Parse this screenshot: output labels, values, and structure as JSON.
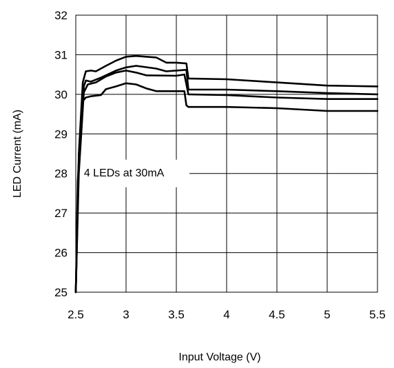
{
  "chart_data": {
    "type": "line",
    "title": "",
    "xlabel": "Input Voltage (V)",
    "ylabel": "LED Current (mA)",
    "xlim": [
      2.5,
      5.5
    ],
    "ylim": [
      25,
      32
    ],
    "x_ticks": [
      2.5,
      3,
      3.5,
      4,
      4.5,
      5,
      5.5
    ],
    "x_tick_labels": [
      "2.5",
      "3",
      "3.5",
      "4",
      "4.5",
      "5",
      "5.5"
    ],
    "y_ticks": [
      25,
      26,
      27,
      28,
      29,
      30,
      31,
      32
    ],
    "y_tick_labels": [
      "25",
      "26",
      "27",
      "28",
      "29",
      "30",
      "31",
      "32"
    ],
    "grid": true,
    "line_color": "#000000",
    "annotation": "4 LEDs at 30mA",
    "series": [
      {
        "values": [
          [
            2.5,
            25.0
          ],
          [
            2.53,
            28.5
          ],
          [
            2.57,
            30.3
          ],
          [
            2.6,
            30.58
          ],
          [
            2.65,
            30.6
          ],
          [
            2.7,
            30.58
          ],
          [
            2.8,
            30.72
          ],
          [
            2.9,
            30.85
          ],
          [
            3.0,
            30.95
          ],
          [
            3.1,
            30.97
          ],
          [
            3.3,
            30.93
          ],
          [
            3.4,
            30.8
          ],
          [
            3.5,
            30.8
          ],
          [
            3.6,
            30.78
          ],
          [
            3.62,
            30.4
          ],
          [
            4.0,
            30.38
          ],
          [
            4.5,
            30.3
          ],
          [
            5.0,
            30.22
          ],
          [
            5.5,
            30.2
          ]
        ]
      },
      {
        "values": [
          [
            2.5,
            25.0
          ],
          [
            2.53,
            28.3
          ],
          [
            2.58,
            30.2
          ],
          [
            2.6,
            30.35
          ],
          [
            2.65,
            30.32
          ],
          [
            2.75,
            30.42
          ],
          [
            2.9,
            30.6
          ],
          [
            3.0,
            30.68
          ],
          [
            3.1,
            30.72
          ],
          [
            3.3,
            30.65
          ],
          [
            3.4,
            30.58
          ],
          [
            3.6,
            30.62
          ],
          [
            3.62,
            30.12
          ],
          [
            4.0,
            30.12
          ],
          [
            4.5,
            30.08
          ],
          [
            5.0,
            30.03
          ],
          [
            5.5,
            30.0
          ]
        ]
      },
      {
        "values": [
          [
            2.5,
            25.0
          ],
          [
            2.53,
            28.0
          ],
          [
            2.58,
            30.05
          ],
          [
            2.62,
            30.25
          ],
          [
            2.7,
            30.3
          ],
          [
            2.8,
            30.45
          ],
          [
            2.9,
            30.55
          ],
          [
            3.0,
            30.6
          ],
          [
            3.1,
            30.55
          ],
          [
            3.2,
            30.48
          ],
          [
            3.5,
            30.47
          ],
          [
            3.58,
            30.5
          ],
          [
            3.62,
            30.0
          ],
          [
            4.0,
            29.98
          ],
          [
            4.5,
            29.92
          ],
          [
            5.0,
            29.88
          ],
          [
            5.5,
            29.88
          ]
        ]
      },
      {
        "values": [
          [
            2.5,
            25.0
          ],
          [
            2.52,
            27.8
          ],
          [
            2.56,
            29.8
          ],
          [
            2.6,
            29.92
          ],
          [
            2.65,
            29.95
          ],
          [
            2.75,
            29.98
          ],
          [
            2.8,
            30.13
          ],
          [
            2.9,
            30.2
          ],
          [
            3.0,
            30.28
          ],
          [
            3.1,
            30.25
          ],
          [
            3.2,
            30.15
          ],
          [
            3.3,
            30.08
          ],
          [
            3.58,
            30.08
          ],
          [
            3.6,
            29.72
          ],
          [
            3.62,
            29.68
          ],
          [
            4.0,
            29.68
          ],
          [
            4.5,
            29.65
          ],
          [
            5.0,
            29.58
          ],
          [
            5.5,
            29.58
          ]
        ]
      }
    ]
  }
}
